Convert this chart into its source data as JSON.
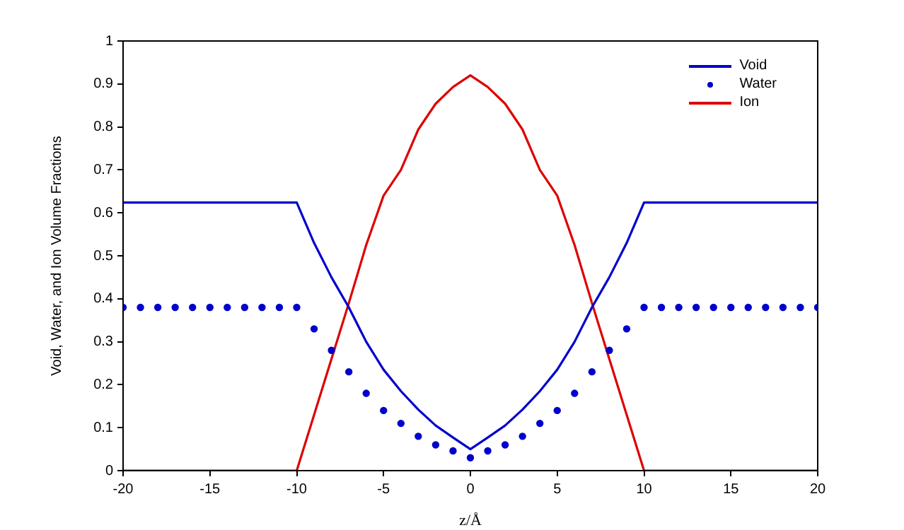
{
  "chart_data": {
    "type": "line",
    "xlabel": "z/Å",
    "ylabel": "Void, Water, and Ion Volume Fractions",
    "xlim": [
      -20,
      20
    ],
    "xticks": [
      -20,
      -15,
      -10,
      -5,
      0,
      5,
      10,
      15,
      20
    ],
    "ylim": [
      0,
      1
    ],
    "yticks": [
      0,
      0.1,
      0.2,
      0.3,
      0.4,
      0.5,
      0.6,
      0.7,
      0.8,
      0.9,
      1
    ],
    "grid": false,
    "legend": "top right",
    "series": [
      {
        "name": "Void",
        "color": "#0000cc",
        "marker": "none",
        "x": [
          -20,
          -10,
          -9,
          -8,
          -7,
          -6,
          -5,
          -4,
          -3,
          -2,
          -1,
          0,
          1,
          2,
          3,
          4,
          5,
          6,
          7,
          8,
          9,
          10,
          20
        ],
        "values": [
          0.624,
          0.624,
          0.53,
          0.45,
          0.38,
          0.3,
          0.235,
          0.185,
          0.142,
          0.105,
          0.077,
          0.05,
          0.077,
          0.105,
          0.142,
          0.185,
          0.235,
          0.3,
          0.38,
          0.45,
          0.53,
          0.624,
          0.624
        ]
      },
      {
        "name": "Water",
        "type": "scatter",
        "color": "#0000cc",
        "marker": "circle",
        "x": [
          -20,
          -19,
          -18,
          -17,
          -16,
          -15,
          -14,
          -13,
          -12,
          -11,
          -10,
          -9,
          -8,
          -7,
          -6,
          -5,
          -4,
          -3,
          -2,
          -1,
          0,
          1,
          2,
          3,
          4,
          5,
          6,
          7,
          8,
          9,
          10,
          11,
          12,
          13,
          14,
          15,
          16,
          17,
          18,
          19,
          20
        ],
        "values": [
          0.38,
          0.38,
          0.38,
          0.38,
          0.38,
          0.38,
          0.38,
          0.38,
          0.38,
          0.38,
          0.38,
          0.33,
          0.28,
          0.23,
          0.18,
          0.14,
          0.11,
          0.08,
          0.06,
          0.046,
          0.03,
          0.046,
          0.06,
          0.08,
          0.11,
          0.14,
          0.18,
          0.23,
          0.28,
          0.33,
          0.38,
          0.38,
          0.38,
          0.38,
          0.38,
          0.38,
          0.38,
          0.38,
          0.38,
          0.38,
          0.38
        ]
      },
      {
        "name": "Ion",
        "color": "#dd0000",
        "marker": "none",
        "x": [
          -20,
          -10,
          -9,
          -8,
          -7,
          -6,
          -5,
          -4,
          -3,
          -2,
          -1,
          0,
          1,
          2,
          3,
          4,
          5,
          6,
          7,
          8,
          9,
          10,
          20
        ],
        "values": [
          0,
          0,
          0.13,
          0.26,
          0.39,
          0.525,
          0.64,
          0.7,
          0.794,
          0.854,
          0.893,
          0.92,
          0.893,
          0.854,
          0.794,
          0.7,
          0.64,
          0.525,
          0.39,
          0.26,
          0.13,
          0,
          0
        ]
      }
    ]
  }
}
